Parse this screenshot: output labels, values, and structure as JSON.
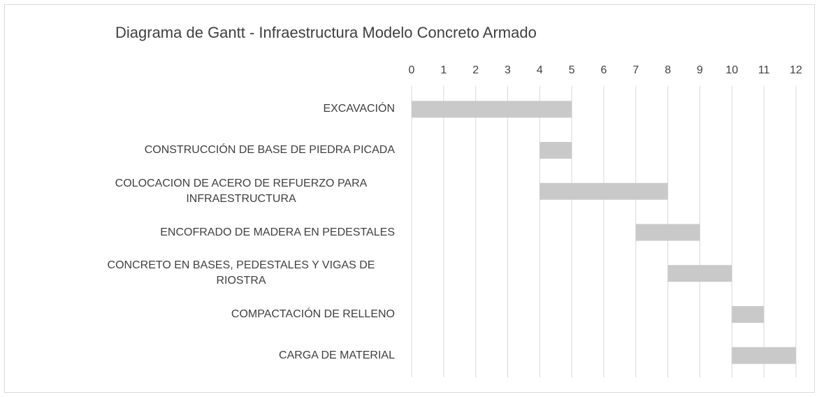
{
  "chart_data": {
    "type": "gantt",
    "title": "Diagrama de Gantt - Infraestructura Modelo Concreto Armado",
    "categories": [
      "EXCAVACIÓN",
      "CONSTRUCCIÓN DE BASE DE PIEDRA PICADA",
      "COLOCACION DE ACERO DE REFUERZO PARA INFRAESTRUCTURA",
      "ENCOFRADO DE MADERA EN PEDESTALES",
      "CONCRETO EN BASES, PEDESTALES Y VIGAS DE RIOSTRA",
      "COMPACTACIÓN DE RELLENO",
      "CARGA DE MATERIAL"
    ],
    "start": [
      0,
      4,
      4,
      7,
      8,
      10,
      10
    ],
    "duration": [
      5,
      1,
      4,
      2,
      2,
      1,
      2
    ],
    "color": "#c9c9c9",
    "xlim": [
      0,
      12
    ],
    "xticks": [
      0,
      1,
      2,
      3,
      4,
      5,
      6,
      7,
      8,
      9,
      10,
      11,
      12
    ],
    "grid": true
  }
}
